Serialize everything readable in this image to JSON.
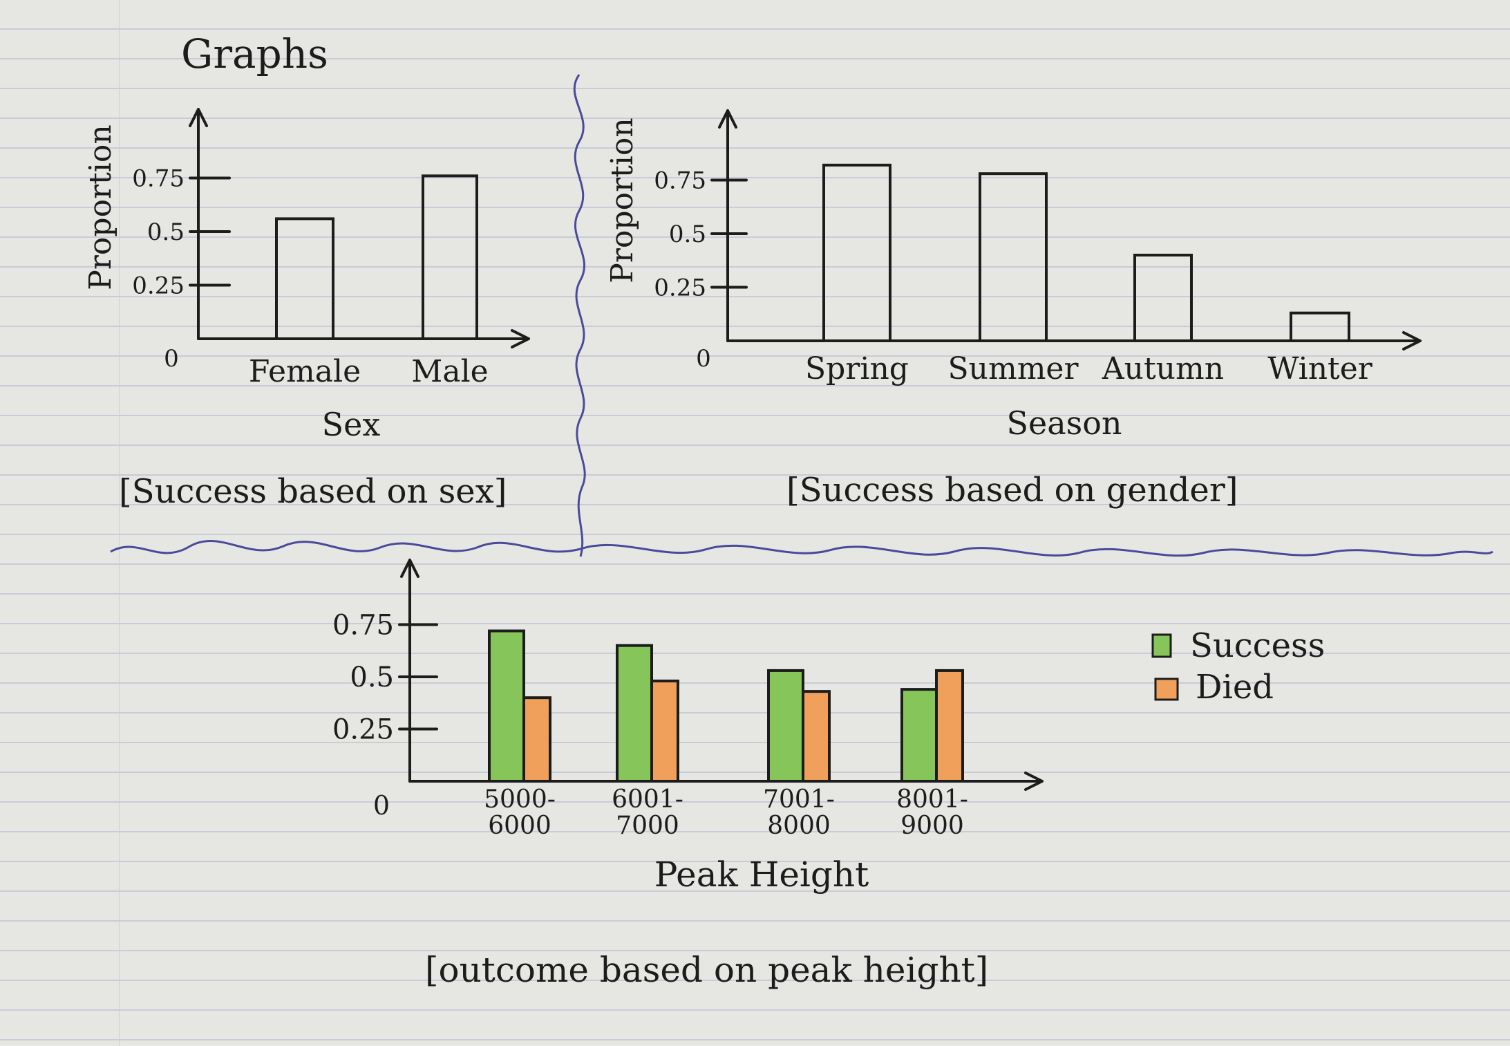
{
  "page_title": "Graphs",
  "colors": {
    "ink": "#1c1c1c",
    "divider": "#4a4a9a",
    "success": "#86c55a",
    "died": "#f0a05a"
  },
  "chart_data": [
    {
      "type": "bar",
      "categories": [
        "Female",
        "Male"
      ],
      "values": [
        0.56,
        0.76
      ],
      "xlabel": "Sex",
      "ylabel": "Proportion",
      "y_ticks": [
        "0.25",
        "0.5",
        "0.75"
      ],
      "origin_label": "0",
      "ylim": [
        0,
        1
      ],
      "caption": "[Success based on sex]",
      "grid": false
    },
    {
      "type": "bar",
      "categories": [
        "Spring",
        "Summer",
        "Autumn",
        "Winter"
      ],
      "values": [
        0.82,
        0.78,
        0.4,
        0.13
      ],
      "xlabel": "Season",
      "ylabel": "Proportion",
      "y_ticks": [
        "0.25",
        "0.5",
        "0.75"
      ],
      "origin_label": "0",
      "ylim": [
        0,
        1
      ],
      "caption": "[Success based on gender]",
      "grid": false
    },
    {
      "type": "bar",
      "categories": [
        "5000-\n6000",
        "6001-\n7000",
        "7001-\n8000",
        "8001-\n9000"
      ],
      "category_lines": [
        [
          "5000-",
          "6000"
        ],
        [
          "6001-",
          "7000"
        ],
        [
          "7001-",
          "8000"
        ],
        [
          "8001-",
          "9000"
        ]
      ],
      "series": [
        {
          "name": "Success",
          "values": [
            0.72,
            0.65,
            0.53,
            0.44
          ]
        },
        {
          "name": "Died",
          "values": [
            0.4,
            0.48,
            0.43,
            0.53
          ]
        }
      ],
      "xlabel": "Peak Height",
      "ylabel": "",
      "y_ticks": [
        "0.25",
        "0.5",
        "0.75"
      ],
      "origin_label": "0",
      "ylim": [
        0,
        1
      ],
      "legend_position": "right",
      "caption": "[outcome based on peak height]",
      "grid": false
    }
  ]
}
